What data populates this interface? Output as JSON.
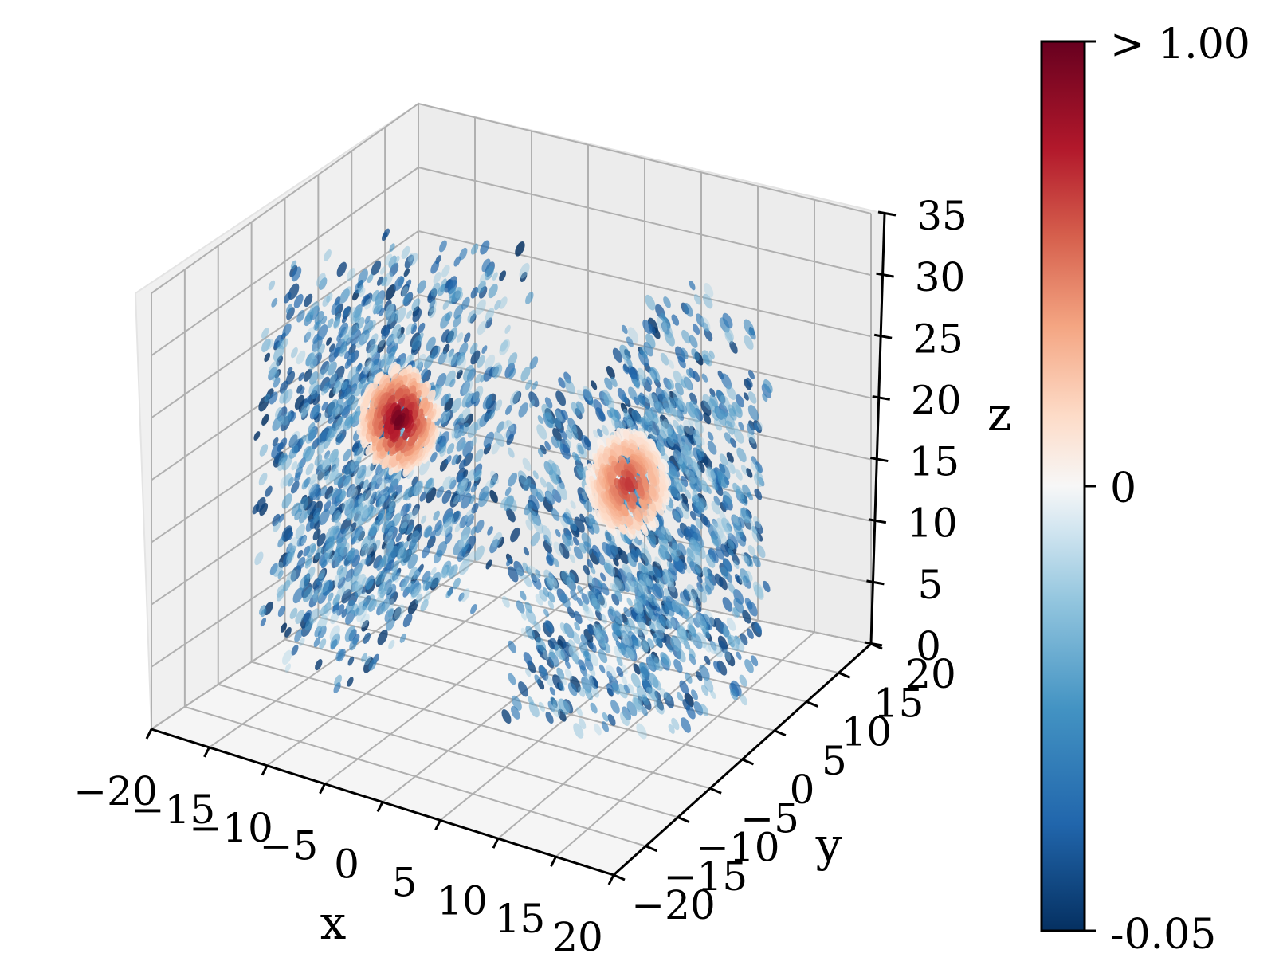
{
  "chart_data": {
    "type": "scatter3d",
    "title": "",
    "xlabel": "x",
    "ylabel": "y",
    "zlabel": "z",
    "x_ticks": [
      -20,
      -15,
      -10,
      -5,
      0,
      5,
      10,
      15,
      20
    ],
    "y_ticks": [
      -20,
      -15,
      -10,
      -5,
      0,
      5,
      10,
      15,
      20
    ],
    "z_ticks": [
      0,
      5,
      10,
      15,
      20,
      25,
      30,
      35
    ],
    "x_tick_labels": [
      "−20",
      "−15",
      "−10",
      "−5",
      "0",
      "5",
      "10",
      "15",
      "20"
    ],
    "y_tick_labels": [
      "−20",
      "−15",
      "−10",
      "−5",
      "0",
      "5",
      "10",
      "15",
      "20"
    ],
    "z_tick_labels": [
      "0",
      "5",
      "10",
      "15",
      "20",
      "25",
      "30",
      "35"
    ],
    "xlim": [
      -20,
      20
    ],
    "ylim": [
      -20,
      20
    ],
    "zlim": [
      0,
      35
    ],
    "grid": true,
    "colormap": "RdBu_r",
    "colorbar": {
      "min_label": "-0.05",
      "mid_label": "0",
      "max_label": "> 1.00",
      "min": -0.05,
      "mid": 0,
      "max": 1.0
    },
    "colors": {
      "deep_red": "#67001f",
      "red": "#b2182b",
      "salmon": "#ef8a62",
      "light_peach": "#fddbc7",
      "white": "#f7f7f7",
      "light_blue": "#d1e5f0",
      "sky_blue": "#67a9cf",
      "blue": "#2166ac",
      "navy": "#053061",
      "pane": "#f2f2f2",
      "grid": "#b0b0b0"
    },
    "lobes": [
      {
        "name": "",
        "center": [
          -10,
          0,
          20
        ],
        "peak_value": 1.0
      },
      {
        "name": "",
        "center": [
          10,
          0,
          20
        ],
        "peak_value": 0.7
      }
    ]
  }
}
